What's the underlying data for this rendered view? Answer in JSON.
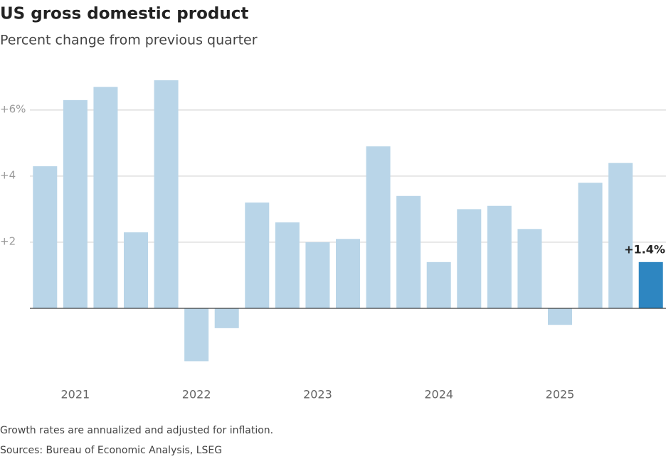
{
  "chart_data": {
    "type": "bar",
    "title": "US gross domestic product",
    "subtitle": "Percent change from previous quarter",
    "categories": [
      null,
      "2021",
      null,
      null,
      null,
      "2022",
      null,
      null,
      null,
      "2023",
      null,
      null,
      null,
      "2024",
      null,
      null,
      null,
      "2025",
      null,
      null,
      null
    ],
    "values": [
      4.3,
      6.3,
      6.7,
      2.3,
      6.9,
      -1.6,
      -0.6,
      3.2,
      2.6,
      2.0,
      2.1,
      4.9,
      3.4,
      1.4,
      3.0,
      3.1,
      2.4,
      -0.5,
      3.8,
      4.4,
      1.4
    ],
    "value_labels": [
      null,
      null,
      null,
      null,
      null,
      null,
      null,
      null,
      null,
      null,
      null,
      null,
      null,
      null,
      null,
      null,
      null,
      null,
      null,
      null,
      "+1.4%"
    ],
    "colors": [
      "#b9d5e8",
      "#b9d5e8",
      "#b9d5e8",
      "#b9d5e8",
      "#b9d5e8",
      "#b9d5e8",
      "#b9d5e8",
      "#b9d5e8",
      "#b9d5e8",
      "#b9d5e8",
      "#b9d5e8",
      "#b9d5e8",
      "#b9d5e8",
      "#b9d5e8",
      "#b9d5e8",
      "#b9d5e8",
      "#b9d5e8",
      "#b9d5e8",
      "#b9d5e8",
      "#b9d5e8",
      "#2e86c1"
    ],
    "ylim": [
      -2,
      7.2
    ],
    "yticks": [
      {
        "value": 2,
        "label": "+2"
      },
      {
        "value": 4,
        "label": "+4"
      },
      {
        "value": 6,
        "label": "+6%"
      }
    ],
    "grid": true,
    "notes": [
      "Growth rates are annualized and adjusted for inflation.",
      "Sources: Bureau of Economic Analysis, LSEG"
    ]
  }
}
